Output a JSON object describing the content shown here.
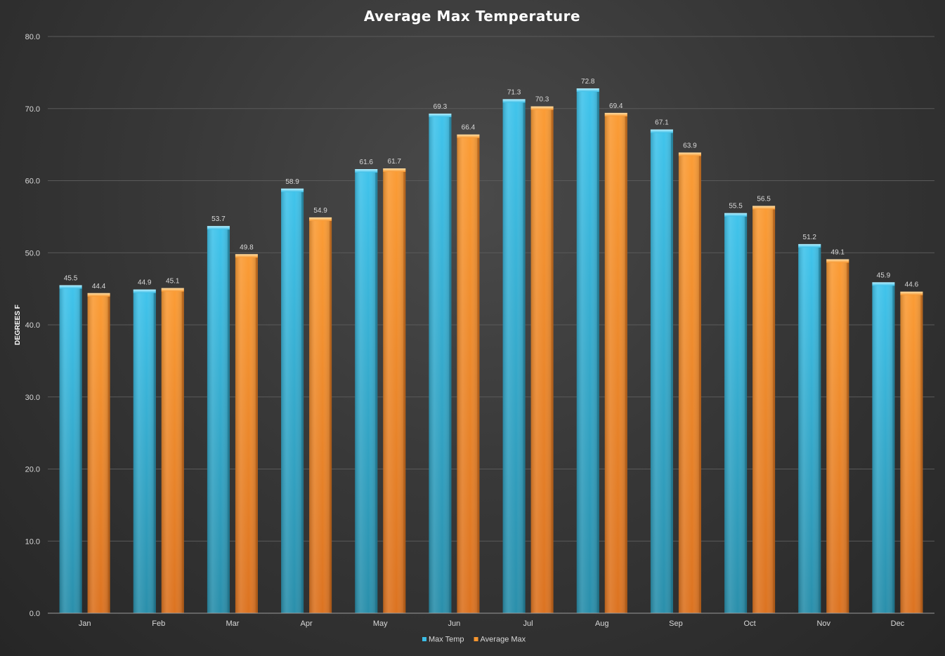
{
  "chart_data": {
    "type": "bar",
    "title": "Average Max Temperature",
    "xlabel": "",
    "ylabel": "DEGREES F",
    "ylim": [
      0,
      80
    ],
    "ytick_step": 10,
    "ytick_labels": [
      "0.0",
      "10.0",
      "20.0",
      "30.0",
      "40.0",
      "50.0",
      "60.0",
      "70.0",
      "80.0"
    ],
    "grid": true,
    "legend_position": "bottom",
    "categories": [
      "Jan",
      "Feb",
      "Mar",
      "Apr",
      "May",
      "Jun",
      "Jul",
      "Aug",
      "Sep",
      "Oct",
      "Nov",
      "Dec"
    ],
    "series": [
      {
        "name": "Max Temp",
        "color": "#3bbde6",
        "values": [
          45.5,
          44.9,
          53.7,
          58.9,
          61.6,
          69.3,
          71.3,
          72.8,
          67.1,
          55.5,
          51.2,
          45.9
        ]
      },
      {
        "name": "Average Max",
        "color": "#f7962f",
        "values": [
          44.4,
          45.1,
          49.8,
          54.9,
          61.7,
          66.4,
          70.3,
          69.4,
          63.9,
          56.5,
          49.1,
          44.6
        ]
      }
    ]
  }
}
